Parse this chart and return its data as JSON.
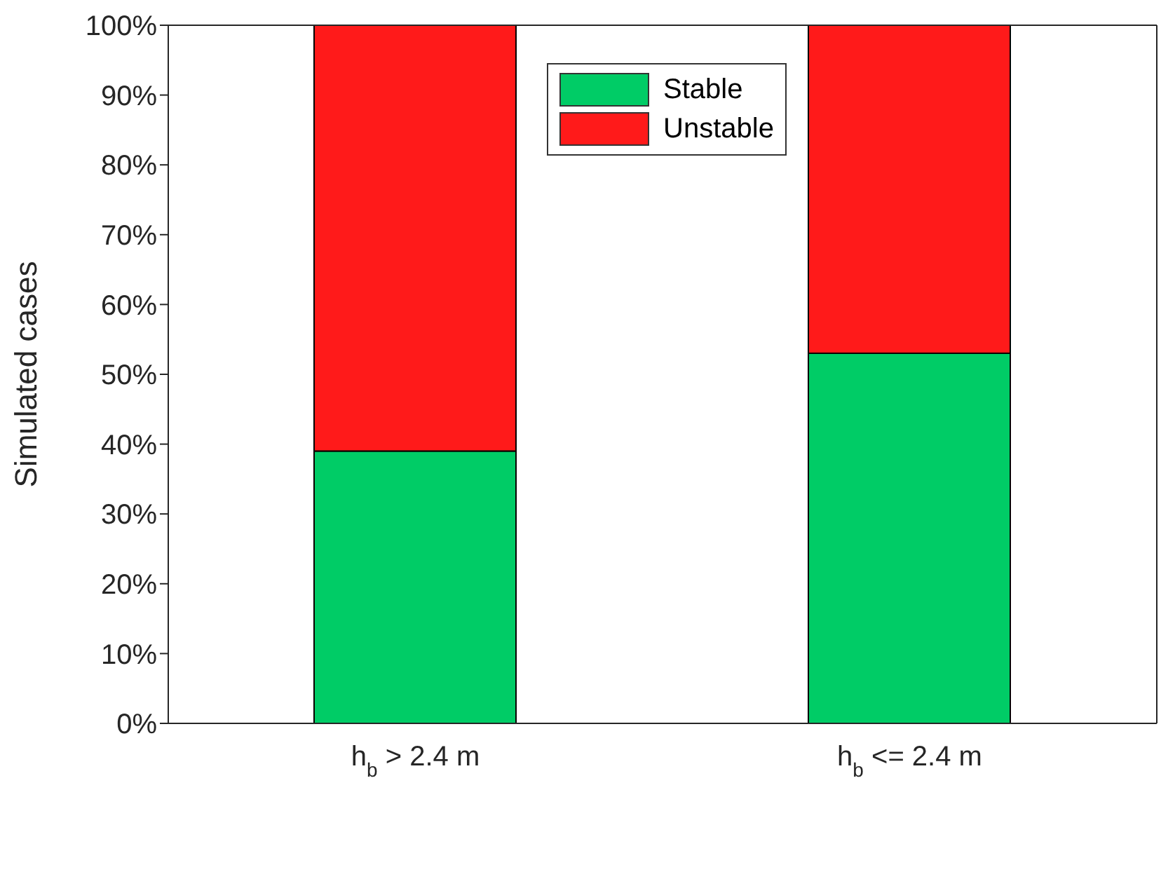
{
  "chart_data": {
    "type": "bar",
    "stacked": true,
    "ylabel": "Simulated cases",
    "categories": [
      "h$_{b}$ > 2.4 m",
      "h$_{b}$ <= 2.4 m"
    ],
    "series": [
      {
        "name": "Stable",
        "color": "#00cc66",
        "values": [
          39,
          53
        ]
      },
      {
        "name": "Unstable",
        "color": "#ff1a1a",
        "values": [
          61,
          47
        ]
      }
    ],
    "ylim": [
      0,
      100
    ],
    "yticks": [
      {
        "value": 0,
        "label": "0%"
      },
      {
        "value": 10,
        "label": "10%"
      },
      {
        "value": 20,
        "label": "20%"
      },
      {
        "value": 30,
        "label": "30%"
      },
      {
        "value": 40,
        "label": "40%"
      },
      {
        "value": 50,
        "label": "50%"
      },
      {
        "value": 60,
        "label": "60%"
      },
      {
        "value": 70,
        "label": "70%"
      },
      {
        "value": 80,
        "label": "80%"
      },
      {
        "value": 90,
        "label": "90%"
      },
      {
        "value": 100,
        "label": "100%"
      }
    ],
    "grid": false,
    "legend": "top"
  }
}
